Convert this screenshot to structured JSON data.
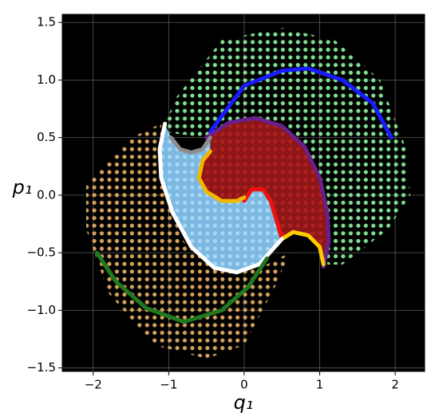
{
  "chart_data": {
    "type": "line",
    "xlabel": "q₁",
    "ylabel": "p₁",
    "xlim": [
      -2.41,
      2.39
    ],
    "ylim": [
      -1.53,
      1.57
    ],
    "xticks": [
      {
        "value": -2,
        "label": "−2"
      },
      {
        "value": -1,
        "label": "−1"
      },
      0,
      1,
      2
    ],
    "yticks": [
      {
        "value": -1.5,
        "label": "−1.5"
      },
      {
        "value": -1,
        "label": "−1.0"
      },
      {
        "value": -0.5,
        "label": "−0.5"
      },
      {
        "value": 0,
        "label": "0.0"
      },
      0.5,
      {
        "value": 1,
        "label": "1.0"
      },
      1.5
    ],
    "grid": true,
    "series": [
      {
        "color": "#1a1aff",
        "x": [
          -0.45,
          0,
          0.5,
          0.85,
          1.3,
          1.7,
          1.95
        ],
        "values": [
          0.55,
          0.95,
          1.08,
          1.1,
          1.0,
          0.8,
          0.5
        ]
      },
      {
        "color": "#6a1f8a",
        "x": [
          -0.5,
          -0.2,
          0.15,
          0.5,
          0.8,
          1.0,
          1.1,
          1.12,
          1.05
        ],
        "values": [
          0.5,
          0.63,
          0.67,
          0.6,
          0.42,
          0.15,
          -0.15,
          -0.4,
          -0.62
        ]
      },
      {
        "color": "#ee1111",
        "x": [
          0,
          0.1,
          0.25,
          0.35,
          0.42,
          0.5
        ],
        "values": [
          -0.05,
          0.05,
          0.05,
          -0.05,
          -0.2,
          -0.38
        ]
      },
      {
        "color": "#ffcc00",
        "x": [
          0.5,
          0.65,
          0.85,
          1.0,
          1.05
        ],
        "values": [
          -0.38,
          -0.32,
          -0.35,
          -0.45,
          -0.6
        ]
      },
      {
        "color": "#f2b800",
        "x": [
          -0.45,
          -0.55,
          -0.6,
          -0.5,
          -0.3,
          -0.1,
          0
        ],
        "values": [
          0.38,
          0.3,
          0.15,
          0.03,
          -0.05,
          -0.05,
          -0.02
        ]
      },
      {
        "color": "#8c8c8c",
        "x": [
          -0.97,
          -0.85,
          -0.7,
          -0.55,
          -0.45
        ],
        "values": [
          0.5,
          0.4,
          0.37,
          0.4,
          0.5
        ]
      },
      {
        "color": "#ffffff",
        "x": [
          -1.05,
          -1.12,
          -1.1,
          -0.95,
          -0.7,
          -0.4,
          -0.1,
          0.2,
          0.5
        ],
        "values": [
          0.62,
          0.4,
          0.15,
          -0.15,
          -0.45,
          -0.63,
          -0.67,
          -0.6,
          -0.38
        ]
      },
      {
        "color": "#1f7a1f",
        "x": [
          -1.95,
          -1.7,
          -1.3,
          -0.8,
          -0.3,
          0.05,
          0.3
        ],
        "values": [
          -0.5,
          -0.75,
          -0.98,
          -1.1,
          -1.0,
          -0.8,
          -0.55
        ]
      }
    ]
  }
}
